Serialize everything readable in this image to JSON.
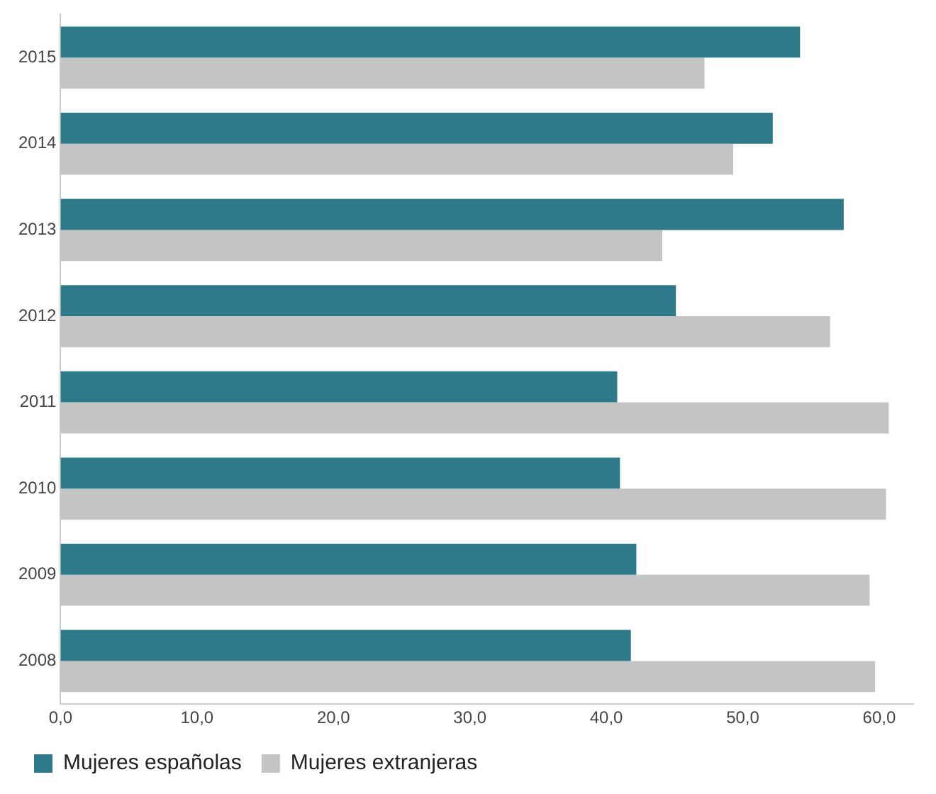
{
  "chart_data": {
    "type": "bar",
    "orientation": "horizontal",
    "categories": [
      "2015",
      "2014",
      "2013",
      "2012",
      "2011",
      "2010",
      "2009",
      "2008"
    ],
    "series": [
      {
        "name": "Mujeres españolas",
        "color": "#2f7a8a",
        "values": [
          54.2,
          52.2,
          57.4,
          45.1,
          40.8,
          41.0,
          42.2,
          41.8
        ]
      },
      {
        "name": "Mujeres extranjeras",
        "color": "#c4c4c4",
        "values": [
          47.2,
          49.3,
          44.1,
          56.4,
          60.7,
          60.5,
          59.3,
          59.7
        ]
      }
    ],
    "xlim": [
      0,
      62.5
    ],
    "xticks": [
      {
        "value": 0,
        "label": "0,0"
      },
      {
        "value": 10,
        "label": "10,0"
      },
      {
        "value": 20,
        "label": "20,0"
      },
      {
        "value": 30,
        "label": "30,0"
      },
      {
        "value": 40,
        "label": "40,0"
      },
      {
        "value": 50,
        "label": "50,0"
      },
      {
        "value": 60,
        "label": "60,0"
      }
    ],
    "grid": false,
    "legend": "bottom left"
  }
}
